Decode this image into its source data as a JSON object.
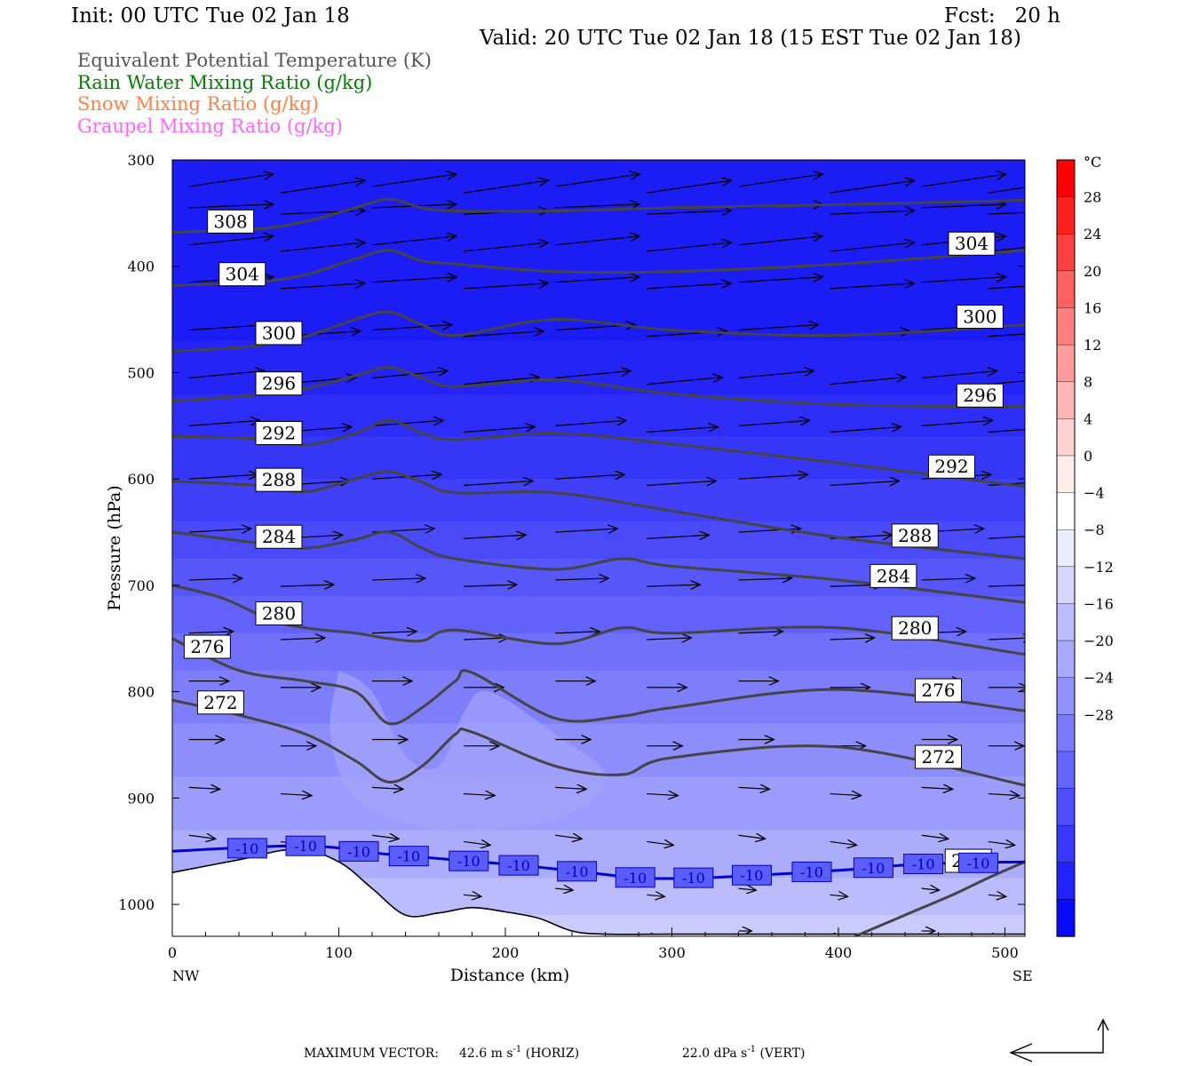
{
  "header": {
    "init": "Init: 00 UTC Tue 02 Jan 18",
    "fcst": "Fcst:   20 h",
    "valid": "Valid: 20 UTC Tue 02 Jan 18 (15 EST Tue 02 Jan 18)"
  },
  "fields": [
    {
      "label": "Equivalent Potential Temperature (K)",
      "color": "#555555"
    },
    {
      "label": "Rain Water Mixing Ratio (g/kg)",
      "color": "#008000"
    },
    {
      "label": "Snow Mixing Ratio (g/kg)",
      "color": "#ff8040"
    },
    {
      "label": "Graupel Mixing Ratio (g/kg)",
      "color": "#ff66ff"
    }
  ],
  "chart_data": {
    "type": "heatmap",
    "xlabel": "Distance (km)",
    "ylabel": "Pressure (hPa)",
    "xlim": [
      0,
      512
    ],
    "ylim": [
      1030,
      300
    ],
    "x_ticks": [
      0,
      100,
      200,
      300,
      400,
      500
    ],
    "y_ticks": [
      300,
      400,
      500,
      600,
      700,
      800,
      900,
      1000
    ],
    "x_end_labels": {
      "left": "NW",
      "right": "SE"
    },
    "colorbar": {
      "unit": "°C",
      "labels": [
        28,
        24,
        20,
        16,
        12,
        8,
        4,
        0,
        -4,
        -8,
        -12,
        -16,
        -20,
        -24,
        -28
      ],
      "colors": [
        "#ff0000",
        "#ff2020",
        "#ff4040",
        "#ff6060",
        "#ff7e7e",
        "#ff9b9b",
        "#ffb6b6",
        "#ffd2d2",
        "#ffecec",
        "#ffffff",
        "#ececff",
        "#d6d6ff",
        "#bebeff",
        "#a8a8ff",
        "#9090ff",
        "#7a7aff",
        "#6464ff",
        "#4e4eff",
        "#3838ff",
        "#2222ff",
        "#0a0aff"
      ]
    },
    "theta_e_contours": [
      {
        "level": 308,
        "points": [
          [
            0,
            368
          ],
          [
            50,
            365
          ],
          [
            80,
            358
          ],
          [
            110,
            345
          ],
          [
            130,
            337
          ],
          [
            150,
            345
          ],
          [
            170,
            348
          ],
          [
            230,
            348
          ],
          [
            300,
            345
          ],
          [
            400,
            342
          ],
          [
            512,
            338
          ]
        ]
      },
      {
        "level": 304,
        "points": [
          [
            0,
            418
          ],
          [
            50,
            415
          ],
          [
            80,
            408
          ],
          [
            110,
            393
          ],
          [
            130,
            385
          ],
          [
            150,
            395
          ],
          [
            170,
            398
          ],
          [
            230,
            405
          ],
          [
            300,
            405
          ],
          [
            400,
            398
          ],
          [
            512,
            385
          ]
        ]
      },
      {
        "level": 300,
        "points": [
          [
            0,
            480
          ],
          [
            50,
            475
          ],
          [
            80,
            466
          ],
          [
            110,
            450
          ],
          [
            130,
            443
          ],
          [
            150,
            455
          ],
          [
            170,
            465
          ],
          [
            230,
            450
          ],
          [
            300,
            460
          ],
          [
            400,
            465
          ],
          [
            512,
            455
          ]
        ]
      },
      {
        "level": 296,
        "points": [
          [
            0,
            527
          ],
          [
            50,
            521
          ],
          [
            80,
            515
          ],
          [
            110,
            503
          ],
          [
            130,
            495
          ],
          [
            150,
            505
          ],
          [
            170,
            513
          ],
          [
            230,
            507
          ],
          [
            300,
            520
          ],
          [
            400,
            530
          ],
          [
            512,
            532
          ]
        ]
      },
      {
        "level": 292,
        "points": [
          [
            0,
            560
          ],
          [
            50,
            562
          ],
          [
            80,
            568
          ],
          [
            110,
            557
          ],
          [
            130,
            545
          ],
          [
            150,
            557
          ],
          [
            170,
            563
          ],
          [
            230,
            557
          ],
          [
            300,
            567
          ],
          [
            400,
            585
          ],
          [
            512,
            607
          ]
        ]
      },
      {
        "level": 288,
        "points": [
          [
            0,
            602
          ],
          [
            50,
            606
          ],
          [
            80,
            612
          ],
          [
            110,
            600
          ],
          [
            130,
            593
          ],
          [
            150,
            603
          ],
          [
            170,
            613
          ],
          [
            230,
            613
          ],
          [
            300,
            630
          ],
          [
            400,
            655
          ],
          [
            512,
            675
          ]
        ]
      },
      {
        "level": 284,
        "points": [
          [
            0,
            650
          ],
          [
            50,
            660
          ],
          [
            80,
            665
          ],
          [
            110,
            657
          ],
          [
            130,
            650
          ],
          [
            150,
            665
          ],
          [
            170,
            675
          ],
          [
            230,
            685
          ],
          [
            270,
            675
          ],
          [
            300,
            682
          ],
          [
            400,
            695
          ],
          [
            512,
            716
          ]
        ]
      },
      {
        "level": 280,
        "points": [
          [
            0,
            700
          ],
          [
            30,
            712
          ],
          [
            60,
            733
          ],
          [
            80,
            740
          ],
          [
            110,
            745
          ],
          [
            130,
            750
          ],
          [
            150,
            752
          ],
          [
            170,
            742
          ],
          [
            230,
            755
          ],
          [
            270,
            740
          ],
          [
            300,
            745
          ],
          [
            400,
            740
          ],
          [
            512,
            765
          ]
        ]
      },
      {
        "level": 276,
        "points": [
          [
            0,
            750
          ],
          [
            40,
            780
          ],
          [
            80,
            790
          ],
          [
            110,
            800
          ],
          [
            130,
            830
          ],
          [
            150,
            815
          ],
          [
            170,
            790
          ],
          [
            180,
            782
          ],
          [
            230,
            825
          ],
          [
            270,
            823
          ],
          [
            300,
            815
          ],
          [
            400,
            798
          ],
          [
            512,
            818
          ]
        ]
      },
      {
        "level": 272,
        "points": [
          [
            0,
            808
          ],
          [
            40,
            822
          ],
          [
            80,
            840
          ],
          [
            110,
            865
          ],
          [
            130,
            885
          ],
          [
            150,
            870
          ],
          [
            170,
            840
          ],
          [
            180,
            838
          ],
          [
            230,
            870
          ],
          [
            270,
            878
          ],
          [
            300,
            862
          ],
          [
            400,
            852
          ],
          [
            512,
            888
          ]
        ]
      },
      {
        "level": 272,
        "points": [
          [
            410,
            1030
          ],
          [
            440,
            1010
          ],
          [
            470,
            990
          ],
          [
            490,
            975
          ],
          [
            512,
            960
          ]
        ]
      }
    ],
    "temperature_contour": {
      "level": -10,
      "points": [
        [
          0,
          950
        ],
        [
          80,
          945
        ],
        [
          130,
          953
        ],
        [
          200,
          962
        ],
        [
          250,
          970
        ],
        [
          280,
          975
        ],
        [
          320,
          975
        ],
        [
          400,
          968
        ],
        [
          450,
          962
        ],
        [
          512,
          960
        ]
      ]
    },
    "terrain": [
      [
        0,
        970
      ],
      [
        40,
        958
      ],
      [
        75,
        948
      ],
      [
        100,
        960
      ],
      [
        120,
        985
      ],
      [
        140,
        1010
      ],
      [
        160,
        1008
      ],
      [
        180,
        1003
      ],
      [
        200,
        1007
      ],
      [
        220,
        1013
      ],
      [
        240,
        1025
      ],
      [
        260,
        1028
      ],
      [
        300,
        1028
      ],
      [
        400,
        1028
      ],
      [
        512,
        1028
      ]
    ],
    "footer": {
      "max_vector_label": "MAXIMUM VECTOR:",
      "horiz_value": "42.6 m s",
      "horiz_unit": " (HORIZ)",
      "vert_value": "22.0 dPa s",
      "vert_unit": " (VERT)",
      "exponent": "-1"
    }
  }
}
